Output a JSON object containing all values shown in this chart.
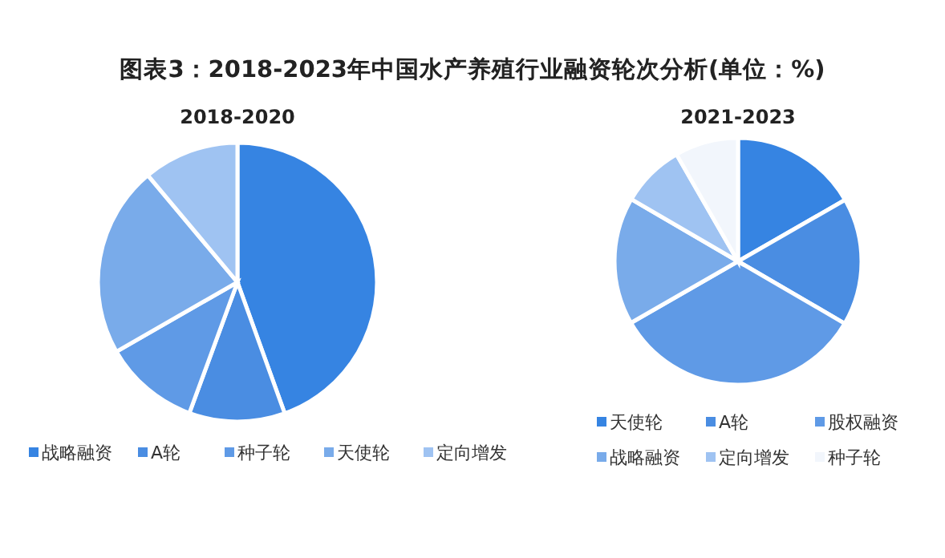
{
  "chart_data": [
    {
      "type": "pie",
      "title": "图表3：2018-2023年中国水产养殖行业融资轮次分析(单位：%)",
      "subtitle": "2018-2020",
      "categories": [
        "战略融资",
        "A轮",
        "种子轮",
        "天使轮",
        "定向增发"
      ],
      "values": [
        44.5,
        11.1,
        11.1,
        22.2,
        11.1
      ],
      "colors": [
        "#3684e2",
        "#4a8de2",
        "#5f9ae6",
        "#79abea",
        "#9fc3f2"
      ],
      "legend": "bottom"
    },
    {
      "type": "pie",
      "subtitle": "2021-2023",
      "categories": [
        "天使轮",
        "A轮",
        "股权融资",
        "战略融资",
        "定向增发",
        "种子轮"
      ],
      "values": [
        16.7,
        16.7,
        33.3,
        16.7,
        8.3,
        8.3
      ],
      "colors": [
        "#3684e2",
        "#4a8de2",
        "#5f9ae6",
        "#79abea",
        "#9fc3f2",
        "#f2f6fc"
      ],
      "legend": "bottom"
    }
  ]
}
